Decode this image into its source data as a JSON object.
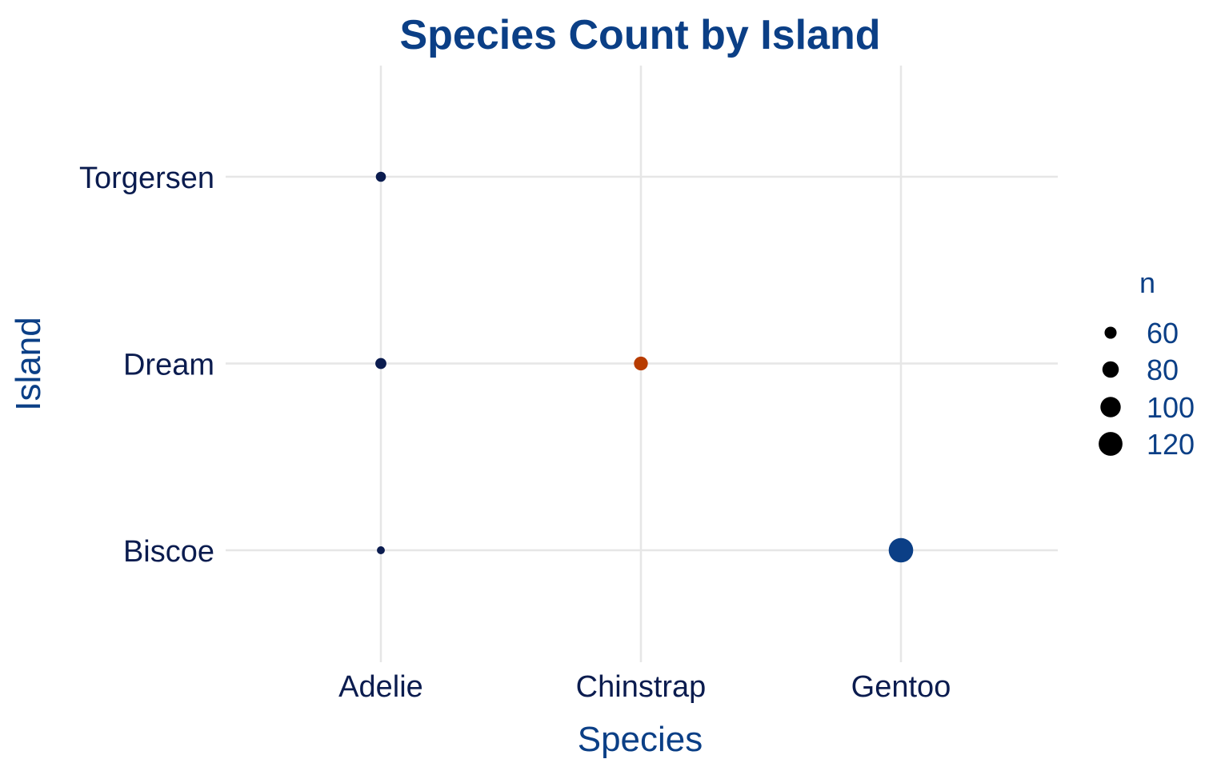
{
  "chart_data": {
    "type": "scatter",
    "title": "Species Count by Island",
    "xlabel": "Species",
    "ylabel": "Island",
    "x_categories": [
      "Adelie",
      "Chinstrap",
      "Gentoo"
    ],
    "y_categories": [
      "Biscoe",
      "Dream",
      "Torgersen"
    ],
    "points": [
      {
        "species": "Adelie",
        "island": "Biscoe",
        "n": 44,
        "color": "#0b1c4f"
      },
      {
        "species": "Adelie",
        "island": "Dream",
        "n": 56,
        "color": "#0b1c4f"
      },
      {
        "species": "Adelie",
        "island": "Torgersen",
        "n": 52,
        "color": "#0b1c4f"
      },
      {
        "species": "Chinstrap",
        "island": "Dream",
        "n": 68,
        "color": "#b83c00"
      },
      {
        "species": "Gentoo",
        "island": "Biscoe",
        "n": 124,
        "color": "#0b3f86"
      }
    ],
    "legend": {
      "title": "n",
      "position": "right",
      "entries": [
        {
          "label": "60",
          "value": 60
        },
        {
          "label": "80",
          "value": 80
        },
        {
          "label": "100",
          "value": 100
        },
        {
          "label": "120",
          "value": 120
        }
      ]
    },
    "grid": true,
    "colors": {
      "title": "#0b3f86",
      "axis_title": "#0b3f86",
      "tick": "#0b1c4f",
      "grid": "#e6e6e6"
    }
  }
}
